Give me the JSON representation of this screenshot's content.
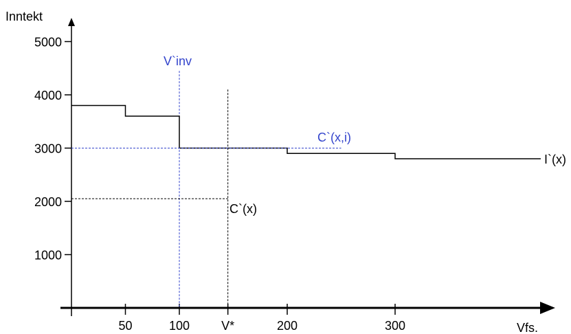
{
  "chart_data": {
    "type": "line",
    "ylabel": "Inntekt",
    "xlabel": "Vfs.",
    "ylim": [
      0,
      5000
    ],
    "xlim": [
      0,
      450
    ],
    "y_ticks": [
      {
        "value": 1000,
        "label": "1000"
      },
      {
        "value": 2000,
        "label": "2000"
      },
      {
        "value": 3000,
        "label": "3000"
      },
      {
        "value": 4000,
        "label": "4000"
      },
      {
        "value": 5000,
        "label": "5000"
      }
    ],
    "x_ticks": [
      {
        "value": 50,
        "label": "50"
      },
      {
        "value": 100,
        "label": "100"
      },
      {
        "value": 145,
        "label": "V*"
      },
      {
        "value": 200,
        "label": "200"
      },
      {
        "value": 300,
        "label": "300"
      }
    ],
    "series": [
      {
        "name": "I`(x)",
        "style": "solid",
        "color": "#000000",
        "x": [
          0,
          50,
          50,
          100,
          100,
          200,
          200,
          300,
          300,
          435
        ],
        "y": [
          3800,
          3800,
          3600,
          3600,
          3000,
          3000,
          2900,
          2900,
          2800,
          2800
        ]
      },
      {
        "name": "C`(x,i)",
        "style": "dashed",
        "color": "#3344cc",
        "x": [
          0,
          250
        ],
        "y": [
          3000,
          3000
        ]
      },
      {
        "name": "C`(x)",
        "style": "dashed",
        "color": "#000000",
        "x": [
          0,
          145
        ],
        "y": [
          2050,
          2050
        ]
      }
    ],
    "vlines": [
      {
        "name": "V`inv",
        "x": 100,
        "y_top": 4450,
        "style": "dashed",
        "color": "#3344cc"
      },
      {
        "name": "V*",
        "x": 145,
        "y_top": 4100,
        "style": "dashed",
        "color": "#000000"
      }
    ],
    "annotations": [
      {
        "text": "V`inv",
        "color": "#3344cc"
      },
      {
        "text": "C`(x,i)",
        "color": "#3344cc"
      },
      {
        "text": "C`(x)",
        "color": "#000000"
      },
      {
        "text": "I`(x)",
        "color": "#000000"
      }
    ]
  }
}
